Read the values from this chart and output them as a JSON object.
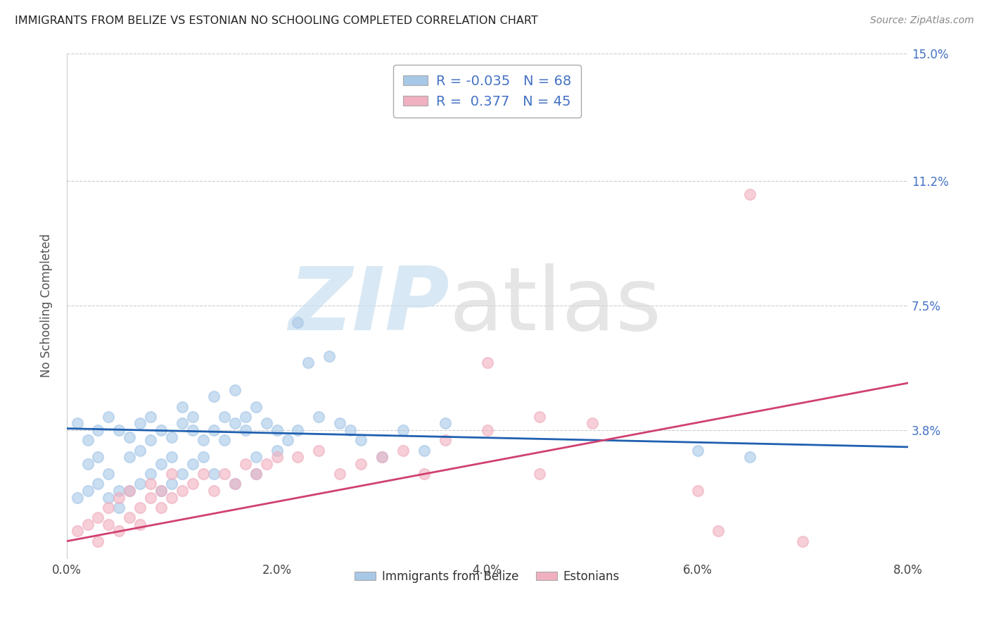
{
  "title": "IMMIGRANTS FROM BELIZE VS ESTONIAN NO SCHOOLING COMPLETED CORRELATION CHART",
  "source": "Source: ZipAtlas.com",
  "ylabel": "No Schooling Completed",
  "legend_label1": "Immigrants from Belize",
  "legend_label2": "Estonians",
  "legend_R1": "-0.035",
  "legend_N1": "68",
  "legend_R2": "0.377",
  "legend_N2": "45",
  "xlim": [
    0.0,
    0.08
  ],
  "ylim": [
    0.0,
    0.15
  ],
  "yticks": [
    0.0,
    0.038,
    0.075,
    0.112,
    0.15
  ],
  "ytick_labels": [
    "",
    "3.8%",
    "7.5%",
    "11.2%",
    "15.0%"
  ],
  "xticks": [
    0.0,
    0.02,
    0.04,
    0.06,
    0.08
  ],
  "xtick_labels": [
    "0.0%",
    "2.0%",
    "4.0%",
    "6.0%",
    "8.0%"
  ],
  "color_blue": "#a8c8e8",
  "color_pink": "#f0b0c0",
  "trend_color_blue": "#2060b0",
  "trend_color_pink": "#d04070",
  "label_color": "#4472c4",
  "blue_dots_x": [
    0.001,
    0.002,
    0.002,
    0.003,
    0.003,
    0.004,
    0.004,
    0.005,
    0.005,
    0.006,
    0.006,
    0.007,
    0.007,
    0.008,
    0.008,
    0.009,
    0.009,
    0.01,
    0.01,
    0.011,
    0.011,
    0.012,
    0.012,
    0.013,
    0.013,
    0.014,
    0.014,
    0.015,
    0.015,
    0.016,
    0.016,
    0.017,
    0.017,
    0.018,
    0.018,
    0.019,
    0.02,
    0.02,
    0.021,
    0.022,
    0.023,
    0.024,
    0.025,
    0.026,
    0.027,
    0.028,
    0.03,
    0.032,
    0.034,
    0.036,
    0.001,
    0.002,
    0.003,
    0.004,
    0.005,
    0.006,
    0.007,
    0.008,
    0.009,
    0.01,
    0.011,
    0.012,
    0.014,
    0.016,
    0.018,
    0.022,
    0.06,
    0.065
  ],
  "blue_dots_y": [
    0.04,
    0.035,
    0.028,
    0.038,
    0.03,
    0.042,
    0.025,
    0.038,
    0.02,
    0.036,
    0.03,
    0.04,
    0.032,
    0.042,
    0.035,
    0.038,
    0.028,
    0.036,
    0.03,
    0.04,
    0.045,
    0.038,
    0.042,
    0.035,
    0.03,
    0.048,
    0.038,
    0.042,
    0.035,
    0.04,
    0.05,
    0.042,
    0.038,
    0.045,
    0.03,
    0.04,
    0.038,
    0.032,
    0.035,
    0.038,
    0.058,
    0.042,
    0.06,
    0.04,
    0.038,
    0.035,
    0.03,
    0.038,
    0.032,
    0.04,
    0.018,
    0.02,
    0.022,
    0.018,
    0.015,
    0.02,
    0.022,
    0.025,
    0.02,
    0.022,
    0.025,
    0.028,
    0.025,
    0.022,
    0.025,
    0.07,
    0.032,
    0.03
  ],
  "pink_dots_x": [
    0.001,
    0.002,
    0.003,
    0.003,
    0.004,
    0.004,
    0.005,
    0.005,
    0.006,
    0.006,
    0.007,
    0.007,
    0.008,
    0.008,
    0.009,
    0.009,
    0.01,
    0.01,
    0.011,
    0.012,
    0.013,
    0.014,
    0.015,
    0.016,
    0.017,
    0.018,
    0.019,
    0.02,
    0.022,
    0.024,
    0.026,
    0.028,
    0.03,
    0.032,
    0.034,
    0.036,
    0.04,
    0.04,
    0.045,
    0.045,
    0.05,
    0.06,
    0.062,
    0.065,
    0.07
  ],
  "pink_dots_y": [
    0.008,
    0.01,
    0.012,
    0.005,
    0.01,
    0.015,
    0.008,
    0.018,
    0.012,
    0.02,
    0.015,
    0.01,
    0.018,
    0.022,
    0.015,
    0.02,
    0.018,
    0.025,
    0.02,
    0.022,
    0.025,
    0.02,
    0.025,
    0.022,
    0.028,
    0.025,
    0.028,
    0.03,
    0.03,
    0.032,
    0.025,
    0.028,
    0.03,
    0.032,
    0.025,
    0.035,
    0.038,
    0.058,
    0.042,
    0.025,
    0.04,
    0.02,
    0.008,
    0.108,
    0.005
  ],
  "blue_trend_x0": 0.0,
  "blue_trend_y0": 0.0385,
  "blue_trend_x1": 0.08,
  "blue_trend_y1": 0.033,
  "pink_trend_x0": 0.0,
  "pink_trend_y0": 0.005,
  "pink_trend_x1": 0.08,
  "pink_trend_y1": 0.052
}
